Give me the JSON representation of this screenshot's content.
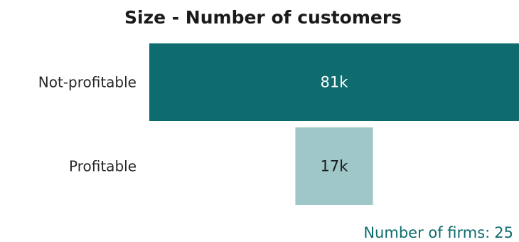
{
  "chart_data": {
    "type": "bar",
    "orientation": "horizontal",
    "title": "Size - Number of customers",
    "categories": [
      "Not-profitable",
      "Profitable"
    ],
    "values": [
      81,
      17
    ],
    "value_labels": [
      "81k",
      "17k"
    ],
    "unit": "k",
    "xlabel": "",
    "ylabel": "",
    "grid": false,
    "legend": "none",
    "bar_colors": [
      "#0e6b6e",
      "#9fc7c8"
    ],
    "value_label_colors": [
      "#ffffff",
      "#1a1a1a"
    ],
    "footnote": {
      "label": "Number of firms:",
      "value": "25"
    }
  }
}
